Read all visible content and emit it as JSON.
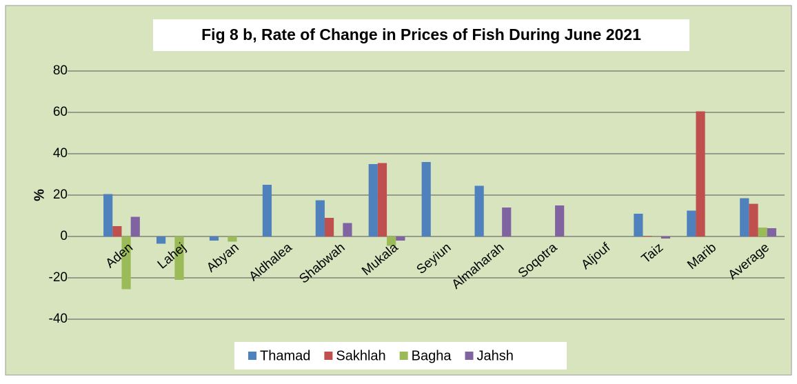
{
  "chart_data": {
    "type": "bar",
    "title": "Fig 8 b, Rate of Change in Prices of  Fish During  June 2021",
    "y_label": "%",
    "categories": [
      "Aden",
      "Lahej",
      "Abyan",
      "Aldhalea",
      "Shabwah",
      "Mukala",
      "Seyiun",
      "Almaharah",
      "Soqotra",
      "Aljouf",
      "Taiz",
      "Marib",
      "Average"
    ],
    "series": [
      {
        "name": "Thamad",
        "color": "#4f81bd",
        "values": [
          20.5,
          -3.5,
          -2,
          25,
          17.5,
          35,
          36,
          24.5,
          0,
          0,
          11,
          12.5,
          18.5
        ]
      },
      {
        "name": "Sakhlah",
        "color": "#c0504d",
        "values": [
          5,
          0,
          0,
          0,
          9,
          35.5,
          0,
          0,
          0,
          0,
          0.3,
          60.5,
          15.8
        ]
      },
      {
        "name": "Bagha",
        "color": "#9bbb59",
        "values": [
          -25.5,
          -21,
          -2.5,
          0,
          0,
          -4.5,
          0,
          0,
          0,
          0,
          0,
          0,
          4.3
        ]
      },
      {
        "name": "Jahsh",
        "color": "#8064a2",
        "values": [
          9.5,
          0,
          0,
          0,
          6.5,
          -2,
          0,
          14,
          15,
          0,
          -1,
          0,
          4
        ]
      }
    ],
    "ylim": [
      -40,
      80
    ],
    "yticks": [
      -40,
      -20,
      0,
      20,
      40,
      60,
      80
    ],
    "grid": true,
    "legend": "bottom"
  }
}
